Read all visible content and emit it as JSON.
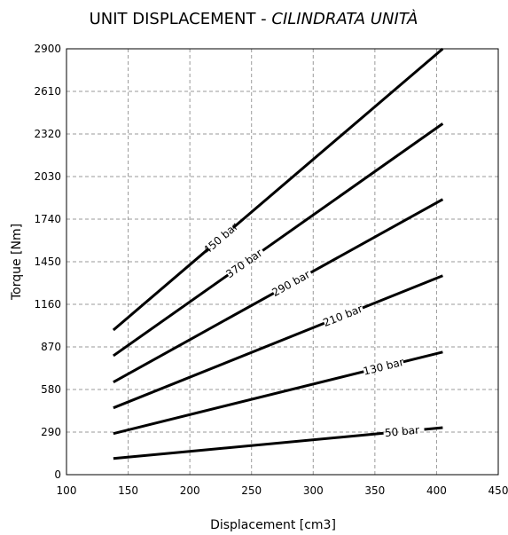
{
  "chart_data": {
    "type": "line",
    "title": "UNIT DISPLACEMENT - ",
    "title_italic": "CILINDRATA UNITÀ",
    "xlabel": "Displacement [cm3]",
    "ylabel": "Torque [Nm]",
    "xlim": [
      100,
      450
    ],
    "ylim": [
      0,
      2900
    ],
    "xticks": [
      100,
      150,
      200,
      250,
      300,
      350,
      400,
      450
    ],
    "yticks": [
      0,
      290,
      580,
      870,
      1160,
      1450,
      1740,
      2030,
      2320,
      2610,
      2900
    ],
    "grid": true,
    "series": [
      {
        "name": "450 bar",
        "x": [
          138,
          405
        ],
        "y": [
          985,
          2900
        ],
        "label_x": 225,
        "label_gap": [
          215,
          235
        ]
      },
      {
        "name": "370 bar",
        "x": [
          138,
          405
        ],
        "y": [
          810,
          2390
        ],
        "label_x": 244,
        "label_gap": [
          231,
          259
        ]
      },
      {
        "name": "290 bar",
        "x": [
          138,
          405
        ],
        "y": [
          630,
          1875
        ],
        "label_x": 282,
        "label_gap": [
          268,
          298
        ]
      },
      {
        "name": "210 bar",
        "x": [
          138,
          405
        ],
        "y": [
          455,
          1355
        ],
        "label_x": 324,
        "label_gap": [
          309,
          340
        ]
      },
      {
        "name": "130 bar",
        "x": [
          138,
          405
        ],
        "y": [
          280,
          835
        ],
        "label_x": 357,
        "label_gap": [
          341,
          373
        ]
      },
      {
        "name": "50 bar",
        "x": [
          138,
          405
        ],
        "y": [
          110,
          320
        ],
        "label_x": 372,
        "label_gap": [
          357,
          390
        ]
      }
    ]
  }
}
